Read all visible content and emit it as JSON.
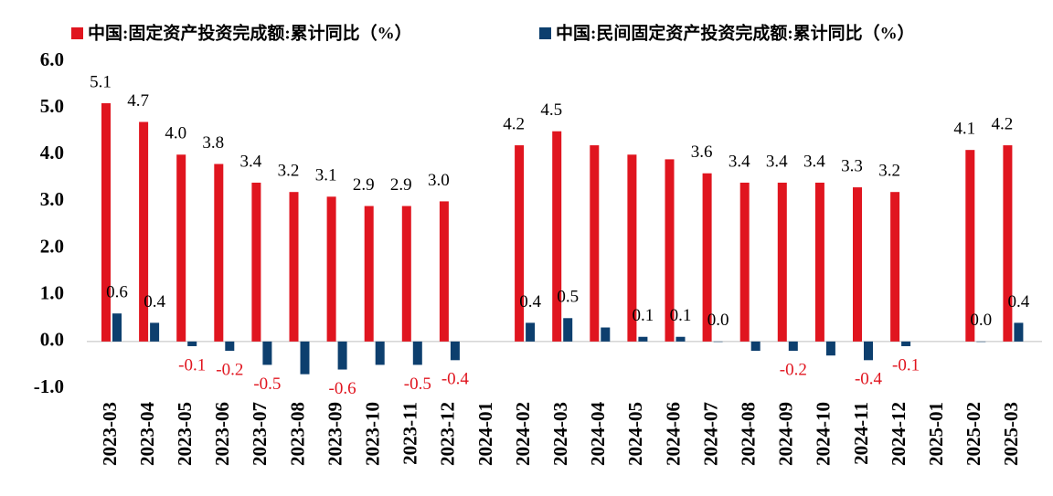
{
  "chart_data": {
    "type": "bar",
    "categories": [
      "2023-03",
      "2023-04",
      "2023-05",
      "2023-06",
      "2023-07",
      "2023-08",
      "2023-09",
      "2023-10",
      "2023-11",
      "2023-12",
      "2024-01",
      "2024-02",
      "2024-03",
      "2024-04",
      "2024-05",
      "2024-06",
      "2024-07",
      "2024-08",
      "2024-09",
      "2024-10",
      "2024-11",
      "2024-12",
      "2025-01",
      "2025-02",
      "2025-03"
    ],
    "series": [
      {
        "name": "中国:固定资产投资完成额:累计同比（%）",
        "color": "#e0151f",
        "values": [
          5.1,
          4.7,
          4.0,
          3.8,
          3.4,
          3.2,
          3.1,
          2.9,
          2.9,
          3.0,
          null,
          4.2,
          4.5,
          4.2,
          4.0,
          3.9,
          3.6,
          3.4,
          3.4,
          3.4,
          3.3,
          3.2,
          null,
          4.1,
          4.2
        ],
        "value_labels": [
          "5.1",
          "4.7",
          "4.0",
          "3.8",
          "3.4",
          "3.2",
          "3.1",
          "2.9",
          "2.9",
          "3.0",
          null,
          "4.2",
          "4.5",
          null,
          null,
          null,
          "3.6",
          "3.4",
          "3.4",
          "3.4",
          "3.3",
          "3.2",
          null,
          "4.1",
          "4.2"
        ]
      },
      {
        "name": "中国:民间固定资产投资完成额:累计同比（%）",
        "color": "#0d3f6e",
        "values": [
          0.6,
          0.4,
          -0.1,
          -0.2,
          -0.5,
          -0.7,
          -0.6,
          -0.5,
          -0.5,
          -0.4,
          null,
          0.4,
          0.5,
          0.3,
          0.1,
          0.1,
          0.0,
          -0.2,
          -0.2,
          -0.3,
          -0.4,
          -0.1,
          null,
          0.0,
          0.4
        ],
        "value_labels": [
          "0.6",
          "0.4",
          "-0.1",
          "-0.2",
          "-0.5",
          null,
          "-0.6",
          null,
          "-0.5",
          "-0.4",
          null,
          "0.4",
          "0.5",
          null,
          "0.1",
          "0.1",
          "0.0",
          null,
          "-0.2",
          null,
          "-0.4",
          "-0.1",
          null,
          "0.0",
          "0.4"
        ]
      }
    ],
    "negative_label_color": "#e0151f",
    "ylim": [
      -1,
      6
    ],
    "yticks": [
      {
        "value": -1,
        "label": "-1.0"
      },
      {
        "value": 0,
        "label": "0.0"
      },
      {
        "value": 1,
        "label": "1.0"
      },
      {
        "value": 2,
        "label": "2.0"
      },
      {
        "value": 3,
        "label": "3.0"
      },
      {
        "value": 4,
        "label": "4.0"
      },
      {
        "value": 5,
        "label": "5.0"
      },
      {
        "value": 6,
        "label": "6.0"
      }
    ],
    "grid": false,
    "legend": "top"
  }
}
